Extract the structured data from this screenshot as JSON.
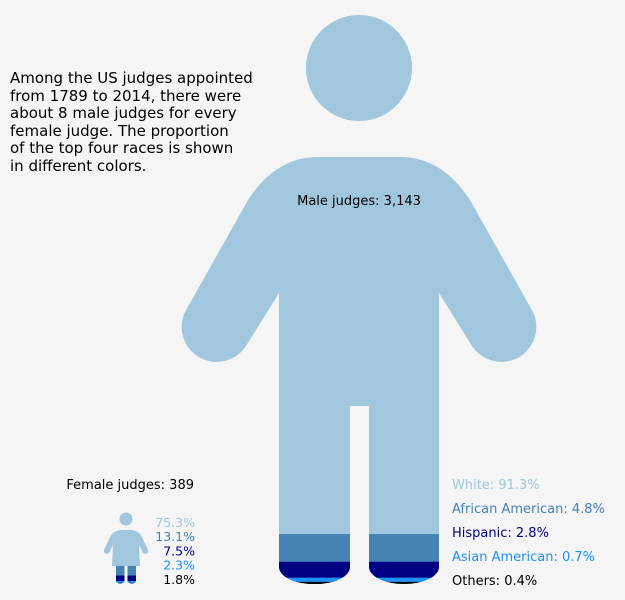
{
  "description": "Among the US judges appointed\nfrom 1789 to 2014, there were\nabout 8 male judges for every\nfemale judge. The proportion\nof the top four races is shown\nin different colors.",
  "colors": {
    "base": "#a0c7dd",
    "White": "#a0c7dd",
    "African American": "#4682b4",
    "Hispanic": "#000080",
    "Asian American": "#1e90ff",
    "Others": "#000000"
  },
  "chart_data": [
    {
      "type": "pictogram",
      "title": "Male judges: 3,143",
      "count": 3143,
      "categories": [
        "White",
        "African American",
        "Hispanic",
        "Asian American",
        "Others"
      ],
      "labels": [
        "White: 91.3%",
        "African American: 4.8%",
        "Hispanic: 2.8%",
        "Asian American: 0.7%",
        "Others: 0.4%"
      ],
      "values": [
        91.3,
        4.8,
        2.8,
        0.7,
        0.4
      ]
    },
    {
      "type": "pictogram",
      "title": "Female judges: 389",
      "count": 389,
      "categories": [
        "White",
        "African American",
        "Hispanic",
        "Asian American",
        "Others"
      ],
      "labels": [
        "75.3%",
        "13.1%",
        "7.5%",
        "2.3%",
        "1.8%"
      ],
      "values": [
        75.3,
        13.1,
        7.5,
        2.3,
        1.8
      ]
    }
  ]
}
